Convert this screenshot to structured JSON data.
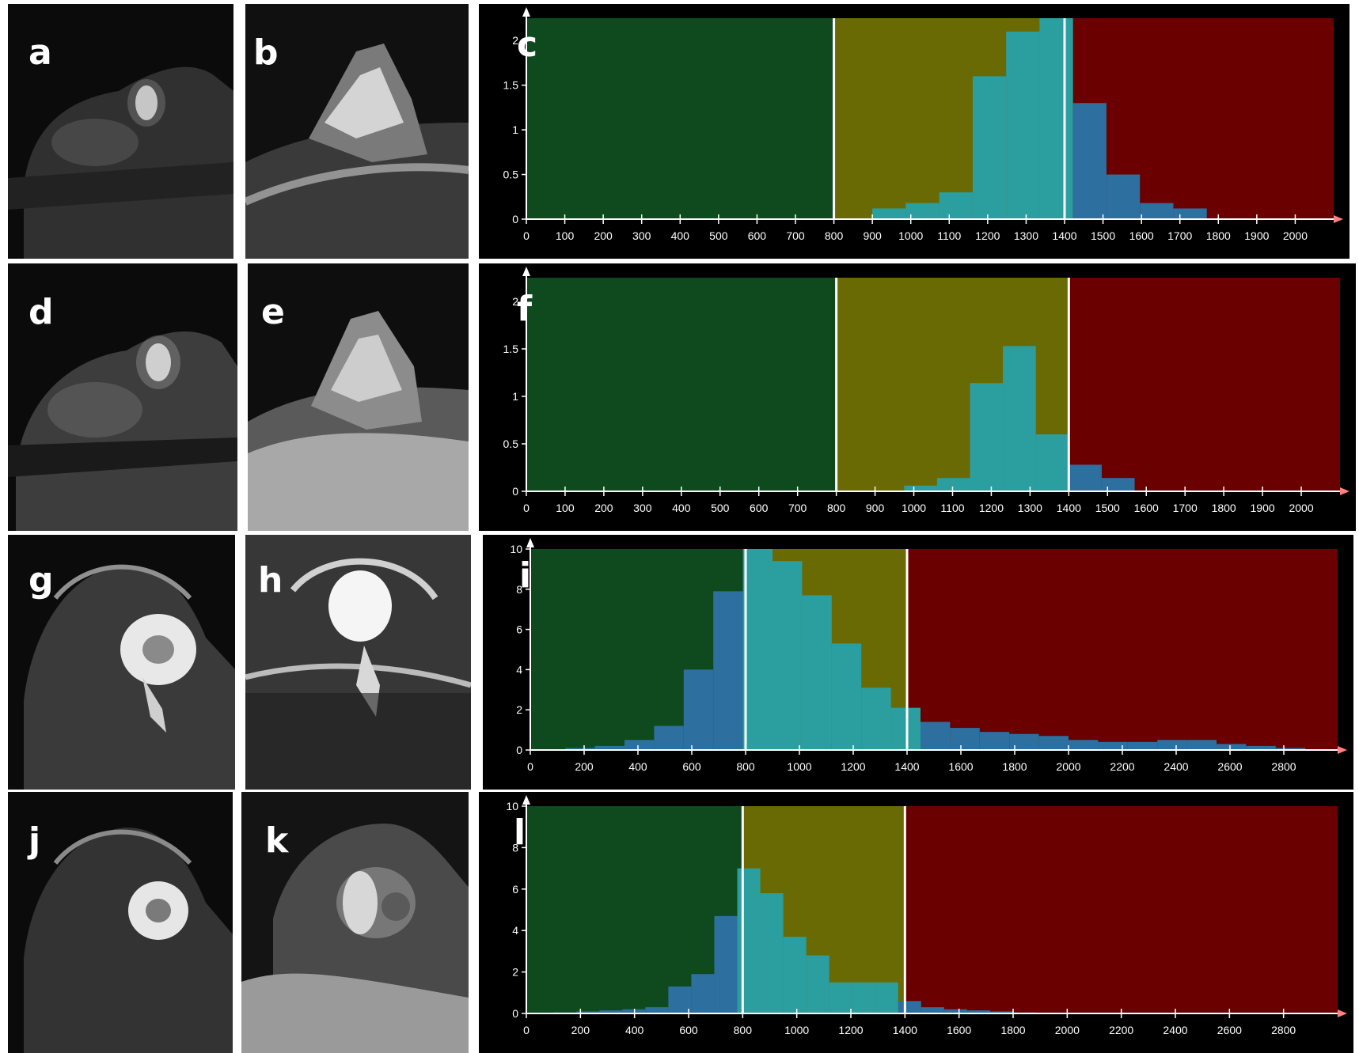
{
  "colors": {
    "green_zone": "#0e4a1e",
    "yellow_zone": "#6a6a05",
    "red_zone": "#6a0000",
    "bars_blue": "#2d6f9e",
    "bars_cyan": "#2b9ea0",
    "axis": "#ffffff",
    "threshold_line": "#ffffff"
  },
  "panels": [
    {
      "letter": "a",
      "type": "dwi",
      "lesion": "small-bright-spot"
    },
    {
      "letter": "b",
      "type": "adc",
      "lesion": "noisy-triangle"
    },
    {
      "letter": "d",
      "type": "dwi",
      "lesion": "small-bright-spot"
    },
    {
      "letter": "e",
      "type": "adc",
      "lesion": "smooth-triangle"
    },
    {
      "letter": "g",
      "type": "dwi",
      "lesion": "ring-mass"
    },
    {
      "letter": "h",
      "type": "adc",
      "lesion": "noisy-bright-mass"
    },
    {
      "letter": "j",
      "type": "dwi",
      "lesion": "ring-mass"
    },
    {
      "letter": "k",
      "type": "adc",
      "lesion": "ring-mass"
    }
  ],
  "chart_data": [
    {
      "panel_letter": "c",
      "type": "bar",
      "zones": [
        {
          "color": "green",
          "from": 0,
          "to": 800
        },
        {
          "color": "yellow",
          "from": 800,
          "to": 1400
        },
        {
          "color": "red",
          "from": 1400,
          "to": 2100
        }
      ],
      "thresholds": [
        800,
        1400
      ],
      "xlim": [
        0,
        2100
      ],
      "ylim": [
        0,
        2.25
      ],
      "x_ticks": [
        0,
        100,
        200,
        300,
        400,
        500,
        600,
        700,
        800,
        900,
        1000,
        1100,
        1200,
        1300,
        1400,
        1500,
        1600,
        1700,
        1800,
        1900,
        2000
      ],
      "x_tick_labels": [
        "0",
        "100",
        "200",
        "300",
        "400",
        "500",
        "600",
        "700",
        "800",
        "900",
        "1000",
        "1100",
        "1200",
        "1300",
        "1400",
        "1500",
        "1600",
        "1700",
        "1800",
        "1900",
        "2000"
      ],
      "y_ticks": [
        0,
        0.5,
        1,
        1.5,
        2
      ],
      "y_tick_labels": [
        "0",
        "0.5",
        "1",
        "1.5",
        "2"
      ],
      "bin_width": 87,
      "bins": [
        {
          "x": 900,
          "value": 0.12
        },
        {
          "x": 987,
          "value": 0.18
        },
        {
          "x": 1074,
          "value": 0.3
        },
        {
          "x": 1161,
          "value": 1.6
        },
        {
          "x": 1248,
          "value": 2.1
        },
        {
          "x": 1335,
          "value": 2.25
        },
        {
          "x": 1422,
          "value": 1.3
        },
        {
          "x": 1509,
          "value": 0.5
        },
        {
          "x": 1596,
          "value": 0.18
        },
        {
          "x": 1683,
          "value": 0.12
        }
      ],
      "grid": false
    },
    {
      "panel_letter": "f",
      "type": "bar",
      "zones": [
        {
          "color": "green",
          "from": 0,
          "to": 800
        },
        {
          "color": "yellow",
          "from": 800,
          "to": 1400
        },
        {
          "color": "red",
          "from": 1400,
          "to": 2100
        }
      ],
      "thresholds": [
        800,
        1400
      ],
      "xlim": [
        0,
        2100
      ],
      "ylim": [
        0,
        2.25
      ],
      "x_ticks": [
        0,
        100,
        200,
        300,
        400,
        500,
        600,
        700,
        800,
        900,
        1000,
        1100,
        1200,
        1300,
        1400,
        1500,
        1600,
        1700,
        1800,
        1900,
        2000
      ],
      "x_tick_labels": [
        "0",
        "100",
        "200",
        "300",
        "400",
        "500",
        "600",
        "700",
        "800",
        "900",
        "1000",
        "1100",
        "1200",
        "1300",
        "1400",
        "1500",
        "1600",
        "1700",
        "1800",
        "1900",
        "2000"
      ],
      "y_ticks": [
        0,
        0.5,
        1,
        1.5,
        2
      ],
      "y_tick_labels": [
        "0",
        "0.5",
        "1",
        "1.5",
        "2"
      ],
      "bin_width": 85,
      "bins": [
        {
          "x": 975,
          "value": 0.06
        },
        {
          "x": 1060,
          "value": 0.14
        },
        {
          "x": 1145,
          "value": 1.14
        },
        {
          "x": 1230,
          "value": 1.53
        },
        {
          "x": 1315,
          "value": 0.6
        },
        {
          "x": 1400,
          "value": 0.28
        },
        {
          "x": 1485,
          "value": 0.14
        }
      ],
      "grid": false
    },
    {
      "panel_letter": "i",
      "type": "bar",
      "zones": [
        {
          "color": "green",
          "from": 0,
          "to": 800
        },
        {
          "color": "yellow",
          "from": 800,
          "to": 1400
        },
        {
          "color": "red",
          "from": 1400,
          "to": 3000
        }
      ],
      "thresholds": [
        800,
        1400
      ],
      "xlim": [
        0,
        3000
      ],
      "ylim": [
        0,
        10
      ],
      "x_ticks": [
        0,
        200,
        400,
        600,
        800,
        1000,
        1200,
        1400,
        1600,
        1800,
        2000,
        2200,
        2400,
        2600,
        2800
      ],
      "x_tick_labels": [
        "0",
        "200",
        "400",
        "600",
        "800",
        "1000",
        "1200",
        "1400",
        "1600",
        "1800",
        "2000",
        "2200",
        "2400",
        "2600",
        "2800"
      ],
      "y_ticks": [
        0,
        2,
        4,
        6,
        8,
        10
      ],
      "y_tick_labels": [
        "0",
        "2",
        "4",
        "6",
        "8",
        "10"
      ],
      "bin_width": 110,
      "bins": [
        {
          "x": 130,
          "value": 0.1
        },
        {
          "x": 240,
          "value": 0.2
        },
        {
          "x": 350,
          "value": 0.5
        },
        {
          "x": 460,
          "value": 1.2
        },
        {
          "x": 570,
          "value": 4.0
        },
        {
          "x": 680,
          "value": 7.9
        },
        {
          "x": 790,
          "value": 10.0
        },
        {
          "x": 900,
          "value": 9.4
        },
        {
          "x": 1010,
          "value": 7.7
        },
        {
          "x": 1120,
          "value": 5.3
        },
        {
          "x": 1230,
          "value": 3.1
        },
        {
          "x": 1340,
          "value": 2.1
        },
        {
          "x": 1450,
          "value": 1.4
        },
        {
          "x": 1560,
          "value": 1.1
        },
        {
          "x": 1670,
          "value": 0.9
        },
        {
          "x": 1780,
          "value": 0.8
        },
        {
          "x": 1890,
          "value": 0.7
        },
        {
          "x": 2000,
          "value": 0.5
        },
        {
          "x": 2110,
          "value": 0.4
        },
        {
          "x": 2220,
          "value": 0.4
        },
        {
          "x": 2330,
          "value": 0.5
        },
        {
          "x": 2440,
          "value": 0.5
        },
        {
          "x": 2550,
          "value": 0.3
        },
        {
          "x": 2660,
          "value": 0.2
        },
        {
          "x": 2770,
          "value": 0.1
        }
      ],
      "grid": false
    },
    {
      "panel_letter": "l",
      "type": "bar",
      "zones": [
        {
          "color": "green",
          "from": 0,
          "to": 800
        },
        {
          "color": "yellow",
          "from": 800,
          "to": 1400
        },
        {
          "color": "red",
          "from": 1400,
          "to": 3000
        }
      ],
      "thresholds": [
        800,
        1400
      ],
      "xlim": [
        0,
        3000
      ],
      "ylim": [
        0,
        10
      ],
      "x_ticks": [
        0,
        200,
        400,
        600,
        800,
        1000,
        1200,
        1400,
        1600,
        1800,
        2000,
        2200,
        2400,
        2600,
        2800
      ],
      "x_tick_labels": [
        "0",
        "200",
        "400",
        "600",
        "800",
        "1000",
        "1200",
        "1400",
        "1600",
        "1800",
        "2000",
        "2200",
        "2400",
        "2600",
        "2800"
      ],
      "y_ticks": [
        0,
        2,
        4,
        6,
        8,
        10
      ],
      "y_tick_labels": [
        "0",
        "2",
        "4",
        "6",
        "8",
        "10"
      ],
      "bin_width": 85,
      "bins": [
        {
          "x": 100,
          "value": 0.05
        },
        {
          "x": 185,
          "value": 0.1
        },
        {
          "x": 270,
          "value": 0.15
        },
        {
          "x": 355,
          "value": 0.2
        },
        {
          "x": 440,
          "value": 0.3
        },
        {
          "x": 525,
          "value": 1.3
        },
        {
          "x": 610,
          "value": 1.9
        },
        {
          "x": 695,
          "value": 4.7
        },
        {
          "x": 780,
          "value": 7.0
        },
        {
          "x": 865,
          "value": 5.8
        },
        {
          "x": 950,
          "value": 3.7
        },
        {
          "x": 1035,
          "value": 2.8
        },
        {
          "x": 1120,
          "value": 1.5
        },
        {
          "x": 1205,
          "value": 1.5
        },
        {
          "x": 1290,
          "value": 1.5
        },
        {
          "x": 1375,
          "value": 0.6
        },
        {
          "x": 1460,
          "value": 0.3
        },
        {
          "x": 1545,
          "value": 0.2
        },
        {
          "x": 1630,
          "value": 0.15
        },
        {
          "x": 1715,
          "value": 0.1
        },
        {
          "x": 1800,
          "value": 0.05
        }
      ],
      "grid": false
    }
  ]
}
